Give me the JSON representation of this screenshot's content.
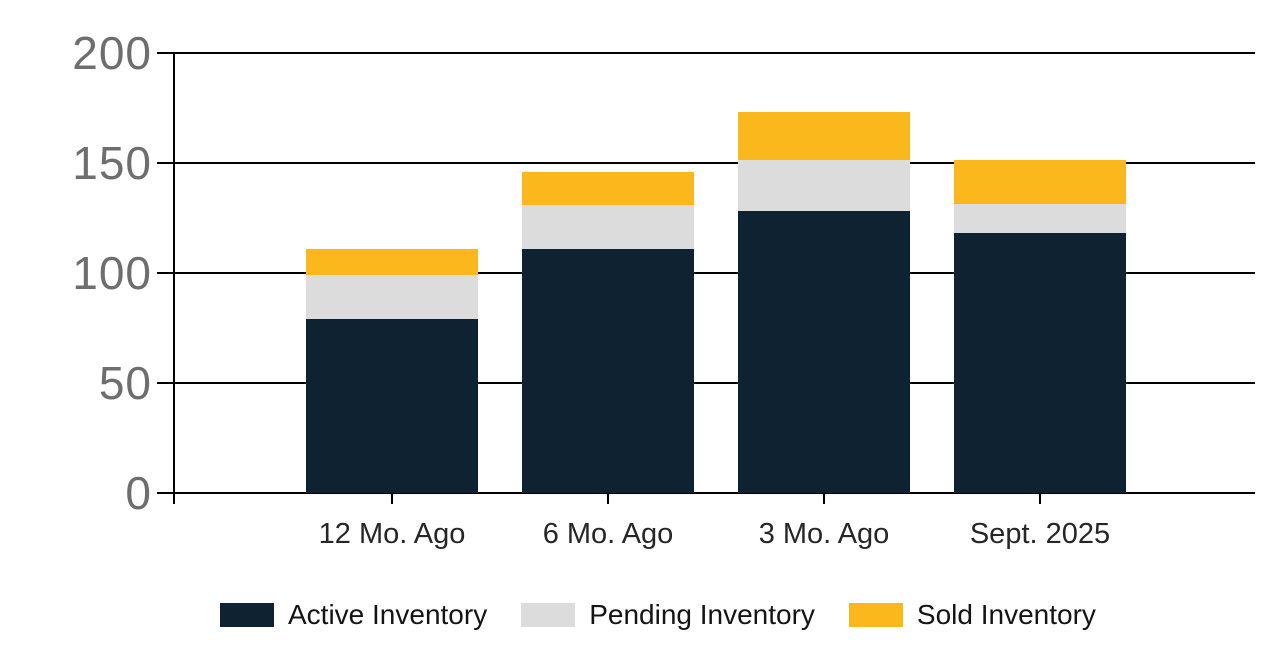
{
  "chart_data": {
    "type": "bar",
    "stacked": true,
    "title": "",
    "xlabel": "",
    "ylabel": "",
    "categories": [
      "12 Mo. Ago",
      "6 Mo. Ago",
      "3 Mo. Ago",
      "Sept. 2025"
    ],
    "series": [
      {
        "name": "Active Inventory",
        "color": "#0e2231",
        "values": [
          79,
          111,
          128,
          118
        ]
      },
      {
        "name": "Pending Inventory",
        "color": "#dcdcdc",
        "values": [
          20,
          20,
          23,
          13
        ]
      },
      {
        "name": "Sold Inventory",
        "color": "#fbb81d",
        "values": [
          12,
          15,
          22,
          20
        ]
      }
    ],
    "stack_totals": [
      111,
      146,
      173,
      151
    ],
    "y_ticks": [
      0,
      50,
      100,
      150,
      200
    ],
    "ylim": [
      0,
      200
    ],
    "grid": true,
    "gridline_color": "#000000",
    "y_tick_label_color": "#6e6e6e",
    "x_tick_label_color": "#262626",
    "background_color": "#ffffff",
    "legend_position": "bottom"
  }
}
